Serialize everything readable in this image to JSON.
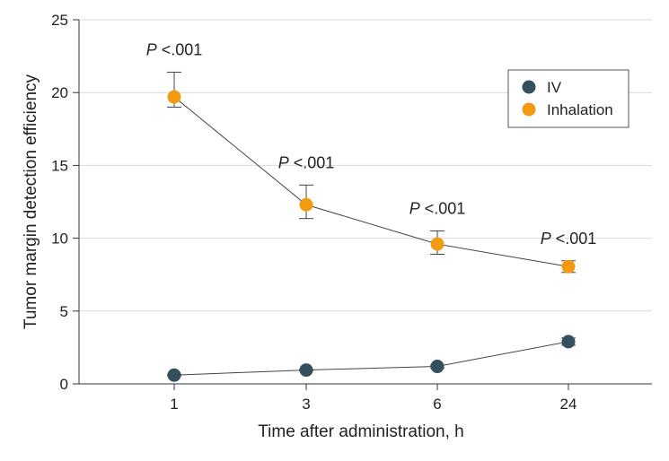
{
  "chart_data": {
    "type": "line",
    "xlabel": "Time after administration, h",
    "ylabel": "Tumor margin detection efficiency",
    "categories": [
      "1",
      "3",
      "6",
      "24"
    ],
    "ylim": [
      0,
      25
    ],
    "yticks": [
      0,
      5,
      10,
      15,
      20,
      25
    ],
    "grid": "horizontal",
    "legend_position": "top-right",
    "series": [
      {
        "name": "IV",
        "color": "#34505c",
        "values": [
          0.6,
          0.95,
          1.2,
          2.9
        ],
        "error_low": [
          0.55,
          0.9,
          1.1,
          2.65
        ],
        "error_high": [
          0.65,
          1.0,
          1.3,
          3.15
        ]
      },
      {
        "name": "Inhalation",
        "color": "#f29b11",
        "values": [
          19.7,
          12.3,
          9.6,
          8.05
        ],
        "error_low": [
          19.0,
          11.35,
          8.9,
          7.65
        ],
        "error_high": [
          21.4,
          13.65,
          10.5,
          8.45
        ]
      }
    ],
    "annotations": [
      {
        "category": "1",
        "y": 21.4,
        "italic": "P",
        "text": " <.001"
      },
      {
        "category": "3",
        "y": 13.65,
        "italic": "P",
        "text": " <.001"
      },
      {
        "category": "6",
        "y": 10.5,
        "italic": "P",
        "text": " <.001"
      },
      {
        "category": "24",
        "y": 8.45,
        "italic": "P",
        "text": " <.001"
      }
    ]
  }
}
